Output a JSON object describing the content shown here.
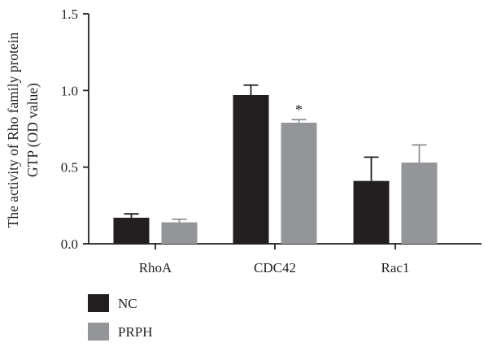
{
  "chart_data": {
    "type": "bar",
    "ylabel_line1": "The activity of Rho family protein",
    "ylabel_line2": "GTP (OD value)",
    "xlabel": "",
    "ylim": [
      0,
      1.5
    ],
    "yticks": [
      "0.0",
      "0.5",
      "1.0",
      "1.5"
    ],
    "ytick_values": [
      0,
      0.5,
      1.0,
      1.5
    ],
    "categories": [
      "RhoA",
      "CDC42",
      "Rac1"
    ],
    "series": [
      {
        "name": "NC",
        "color": "#231f20",
        "values": [
          0.17,
          0.97,
          0.41
        ],
        "error": [
          0.025,
          0.065,
          0.155
        ]
      },
      {
        "name": "PRPH",
        "color": "#939598",
        "values": [
          0.14,
          0.79,
          0.53
        ],
        "error": [
          0.02,
          0.02,
          0.115
        ]
      }
    ],
    "annotations": [
      {
        "category": "CDC42",
        "series": "PRPH",
        "text": "*"
      }
    ],
    "legend_position": "bottom-left"
  }
}
